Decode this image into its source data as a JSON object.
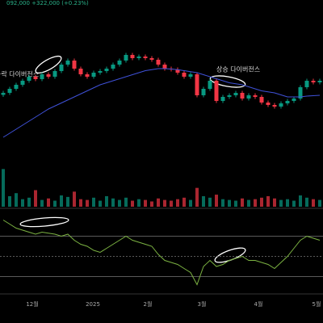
{
  "chart_data": {
    "type": "candlestick",
    "header": "092,000 +322,000 (+0.23%)",
    "annotations": [
      "하락 다이버전스",
      "상승 다이버전스"
    ],
    "x_labels": [
      "12월",
      "2025",
      "2월",
      "3월",
      "4월",
      "5월"
    ],
    "up_color": "#089981",
    "down_color": "#f23645",
    "ma_color": "#3f51d8",
    "ylim": [
      80,
      160
    ],
    "open": [
      113,
      114,
      116,
      118,
      120,
      122,
      120.8,
      123.2,
      122,
      124.8,
      128,
      130,
      126,
      123.2,
      122,
      124,
      124.8,
      126,
      128,
      130,
      132.8,
      131.2,
      132,
      131.2,
      130.4,
      128,
      126,
      125.6,
      124,
      122,
      123.2,
      112.8,
      116,
      120,
      110,
      112,
      112.8,
      114,
      111.2,
      112.8,
      112,
      109.2,
      108,
      107.2,
      108.8,
      110,
      111.2,
      116.8,
      120,
      119.2
    ],
    "high": [
      115,
      117,
      119,
      121,
      123,
      123,
      124.2,
      124.2,
      125.8,
      129,
      131,
      131,
      127,
      124.2,
      125,
      125.8,
      127,
      129,
      131,
      133.8,
      133.8,
      133,
      133,
      132.2,
      131.4,
      129,
      127,
      126.6,
      125,
      124.2,
      124.2,
      117,
      121,
      121,
      113,
      113.8,
      115,
      115,
      113.8,
      113.8,
      113,
      110.2,
      109,
      109.8,
      111,
      112.2,
      117.8,
      121,
      121,
      121
    ],
    "low": [
      112,
      113,
      115,
      117,
      119,
      119.8,
      119.8,
      121,
      121,
      123.8,
      127,
      125,
      122.2,
      121,
      121,
      123,
      123.8,
      125,
      127,
      129,
      130.2,
      130.2,
      130.2,
      129.4,
      127,
      125,
      124.6,
      123,
      121,
      121,
      111.8,
      111.8,
      115,
      109,
      109,
      111,
      111.8,
      110.2,
      110.2,
      111,
      108.2,
      107,
      106.2,
      106.2,
      107.8,
      109,
      110.2,
      115.8,
      118.2,
      118.2
    ],
    "close": [
      114,
      116,
      118,
      120,
      122,
      120.8,
      123.2,
      122,
      124.8,
      128,
      130,
      126,
      123.2,
      122,
      124,
      124.8,
      126,
      128,
      130,
      132.8,
      131.2,
      132,
      131.2,
      130.4,
      128,
      126,
      125.6,
      124,
      122,
      123.2,
      112.8,
      116,
      120,
      110,
      112,
      112.8,
      114,
      111.2,
      112.8,
      112,
      109.2,
      108,
      107.2,
      108.8,
      110,
      111.2,
      116.8,
      120,
      119.2,
      120
    ],
    "ma": [
      92,
      94,
      96,
      98,
      100,
      102,
      104,
      106,
      107.5,
      109,
      110.5,
      112,
      113.5,
      115,
      116.5,
      118,
      119,
      120,
      121,
      122,
      123,
      124,
      125,
      125.5,
      126,
      126,
      125.8,
      125.5,
      125,
      124.5,
      124,
      123,
      122,
      121,
      120,
      119,
      118.5,
      118,
      117,
      116,
      115,
      114.5,
      114,
      113,
      112,
      112,
      112,
      112.4,
      112.6,
      112.8
    ],
    "volume_ylim": [
      0,
      60
    ],
    "volume": [
      50,
      14,
      18,
      10,
      12,
      22,
      9,
      11,
      8,
      15,
      13,
      20,
      10,
      9,
      12,
      8,
      14,
      11,
      9,
      12,
      8,
      10,
      9,
      7,
      11,
      9,
      8,
      10,
      12,
      9,
      25,
      14,
      12,
      16,
      10,
      9,
      8,
      11,
      9,
      10,
      12,
      14,
      11,
      9,
      10,
      8,
      15,
      12,
      10,
      9
    ],
    "rsi_ylim": [
      12,
      92
    ],
    "rsi_levels": [
      30,
      50,
      70
    ],
    "rsi": [
      86,
      82,
      78,
      76,
      74,
      72,
      74,
      73,
      72,
      70,
      72,
      66,
      62,
      60,
      56,
      54,
      58,
      62,
      66,
      70,
      66,
      64,
      62,
      60,
      52,
      46,
      44,
      42,
      38,
      34,
      22,
      40,
      46,
      40,
      42,
      46,
      48,
      50,
      46,
      46,
      44,
      42,
      38,
      44,
      50,
      58,
      66,
      70,
      68,
      66
    ]
  }
}
